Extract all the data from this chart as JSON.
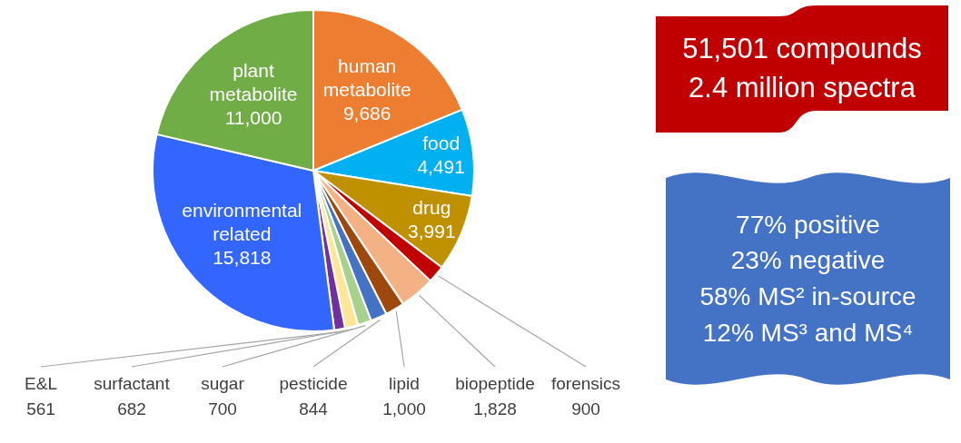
{
  "chart_data": {
    "type": "pie",
    "categories": [
      "human metabolite",
      "food",
      "drug",
      "forensics",
      "biopeptide",
      "lipid",
      "pesticide",
      "sugar",
      "surfactant",
      "E&L",
      "environmental related",
      "plant metabolite"
    ],
    "values": [
      9686,
      4491,
      3991,
      900,
      1828,
      1000,
      844,
      700,
      682,
      561,
      15818,
      11000
    ],
    "value_labels": [
      "9,686",
      "4,491",
      "3,991",
      "900",
      "1,828",
      "1,000",
      "844",
      "700",
      "682",
      "561",
      "15,818",
      "11,000"
    ],
    "colors": [
      "#ed7d31",
      "#00b0f0",
      "#bf9000",
      "#c00000",
      "#f4b183",
      "#9e480e",
      "#4472c4",
      "#a9d18e",
      "#ffe699",
      "#7030a0",
      "#3366ff",
      "#70ad47"
    ],
    "annotations": [
      "51,501 compounds\n2.4 million spectra",
      "77% positive\n23% negative\n58% MS² in-source\n12% MS³ and MS⁴"
    ]
  }
}
